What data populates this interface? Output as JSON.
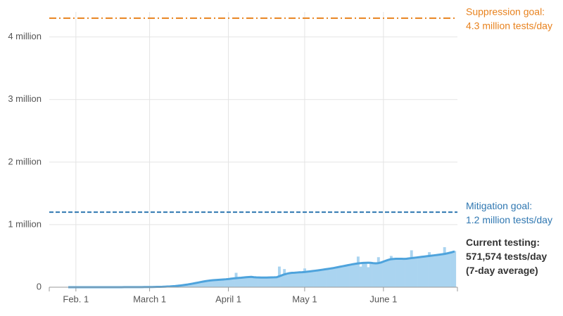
{
  "chart_data": {
    "type": "bar-line",
    "categories": [
      null,
      null,
      null,
      "Feb. 1",
      null,
      null,
      null,
      null,
      null,
      null,
      null,
      null,
      null,
      null,
      null,
      null,
      null,
      null,
      null,
      null,
      null,
      null,
      null,
      null,
      null,
      null,
      null,
      null,
      null,
      null,
      null,
      null,
      "March 1",
      null,
      null,
      null,
      null,
      null,
      null,
      null,
      null,
      null,
      null,
      null,
      null,
      null,
      null,
      null,
      null,
      null,
      null,
      null,
      null,
      null,
      null,
      null,
      null,
      null,
      null,
      null,
      null,
      null,
      null,
      "April 1",
      null,
      null,
      null,
      null,
      null,
      null,
      null,
      null,
      null,
      null,
      null,
      null,
      null,
      null,
      null,
      null,
      null,
      null,
      null,
      null,
      null,
      null,
      null,
      null,
      null,
      null,
      null,
      null,
      null,
      "May 1",
      null,
      null,
      null,
      null,
      null,
      null,
      null,
      null,
      null,
      null,
      null,
      null,
      null,
      null,
      null,
      null,
      null,
      null,
      null,
      null,
      null,
      null,
      null,
      null,
      null,
      null,
      null,
      null,
      null,
      null,
      "June 1",
      null,
      null,
      null,
      null,
      null,
      null,
      null,
      null,
      null,
      null,
      null,
      null,
      null,
      null,
      null,
      null,
      null,
      null,
      null,
      null,
      null,
      null,
      null,
      null,
      null,
      null,
      null,
      null
    ],
    "series": [
      {
        "kind": "bar",
        "color": "#aad4f0",
        "values": [
          0,
          0,
          0,
          0,
          0,
          0,
          0,
          0,
          0,
          0,
          100,
          0,
          300,
          200,
          200,
          400,
          300,
          500,
          600,
          400,
          700,
          600,
          900,
          800,
          1100,
          1300,
          1200,
          1800,
          1700,
          2100,
          2400,
          2500,
          2800,
          3900,
          4200,
          4800,
          6500,
          7200,
          8800,
          12000,
          12500,
          17000,
          20000,
          22000,
          29000,
          31000,
          40000,
          45000,
          50000,
          60000,
          64000,
          78000,
          80000,
          95000,
          98000,
          101000,
          112000,
          108000,
          118000,
          116000,
          123000,
          120000,
          130000,
          128000,
          140000,
          138000,
          230000,
          146000,
          150000,
          158000,
          162000,
          160000,
          170000,
          152000,
          158000,
          150000,
          157000,
          154000,
          160000,
          150000,
          162000,
          155000,
          165000,
          330000,
          180000,
          290000,
          200000,
          230000,
          220000,
          240000,
          232000,
          245000,
          236000,
          300000,
          240000,
          255000,
          250000,
          270000,
          262000,
          278000,
          284000,
          282000,
          300000,
          295000,
          310000,
          305000,
          330000,
          320000,
          340000,
          338000,
          360000,
          355000,
          372000,
          365000,
          490000,
          330000,
          395000,
          385000,
          320000,
          400000,
          380000,
          378000,
          480000,
          390000,
          420000,
          430000,
          445000,
          500000,
          440000,
          470000,
          450000,
          460000,
          448000,
          470000,
          455000,
          590000,
          465000,
          485000,
          470000,
          495000,
          485000,
          500000,
          560000,
          510000,
          508000,
          520000,
          515000,
          530000,
          640000,
          545000,
          560000,
          555000,
          580000
        ]
      },
      {
        "kind": "line",
        "color": "#4ea3dc",
        "values": [
          0,
          0,
          0,
          0,
          0,
          0,
          0,
          0,
          0,
          0,
          100,
          100,
          200,
          200,
          300,
          300,
          400,
          400,
          500,
          500,
          600,
          700,
          800,
          900,
          1000,
          1200,
          1400,
          1600,
          1800,
          2000,
          2300,
          2600,
          3000,
          3500,
          4000,
          5000,
          6000,
          7000,
          9000,
          11000,
          13000,
          16000,
          19000,
          23000,
          27000,
          32000,
          38000,
          44000,
          51000,
          58000,
          66000,
          74000,
          82000,
          90000,
          97000,
          103000,
          108000,
          112000,
          115000,
          118000,
          121000,
          124000,
          127000,
          131000,
          136000,
          141000,
          145000,
          149000,
          152000,
          156000,
          160000,
          163000,
          165000,
          160000,
          157000,
          156000,
          155000,
          155000,
          155000,
          156000,
          157000,
          158000,
          160000,
          175000,
          190000,
          205000,
          215000,
          225000,
          230000,
          232000,
          235000,
          238000,
          240000,
          243000,
          248000,
          253000,
          258000,
          263000,
          268000,
          274000,
          280000,
          286000,
          292000,
          298000,
          304000,
          312000,
          320000,
          328000,
          336000,
          344000,
          352000,
          360000,
          368000,
          375000,
          380000,
          384000,
          388000,
          390000,
          392000,
          390000,
          385000,
          382000,
          385000,
          395000,
          410000,
          425000,
          438000,
          448000,
          452000,
          455000,
          455000,
          454000,
          453000,
          455000,
          460000,
          465000,
          470000,
          475000,
          480000,
          485000,
          490000,
          495000,
          500000,
          505000,
          510000,
          515000,
          520000,
          526000,
          532000,
          540000,
          550000,
          560000,
          571574
        ]
      }
    ],
    "ylim": [
      0,
      4400000
    ],
    "yticks": [
      0,
      {
        "value": 1000000,
        "label": "1 million"
      },
      {
        "value": 2000000,
        "label": "2 million"
      },
      {
        "value": 3000000,
        "label": "3 million"
      },
      {
        "value": 4000000,
        "label": "4 million"
      }
    ],
    "grid": true,
    "goals": [
      {
        "value": 4300000,
        "color": "#e8821e",
        "dash": "dashdot",
        "label": [
          "Suppression goal:",
          "4.3 million tests/day"
        ]
      },
      {
        "value": 1200000,
        "color": "#2f77b1",
        "dash": "dashed",
        "label": [
          "Mitigation goal:",
          "1.2 million tests/day"
        ]
      }
    ],
    "current_label": [
      "Current testing:",
      "571,574 tests/day",
      "(7-day average)"
    ]
  }
}
